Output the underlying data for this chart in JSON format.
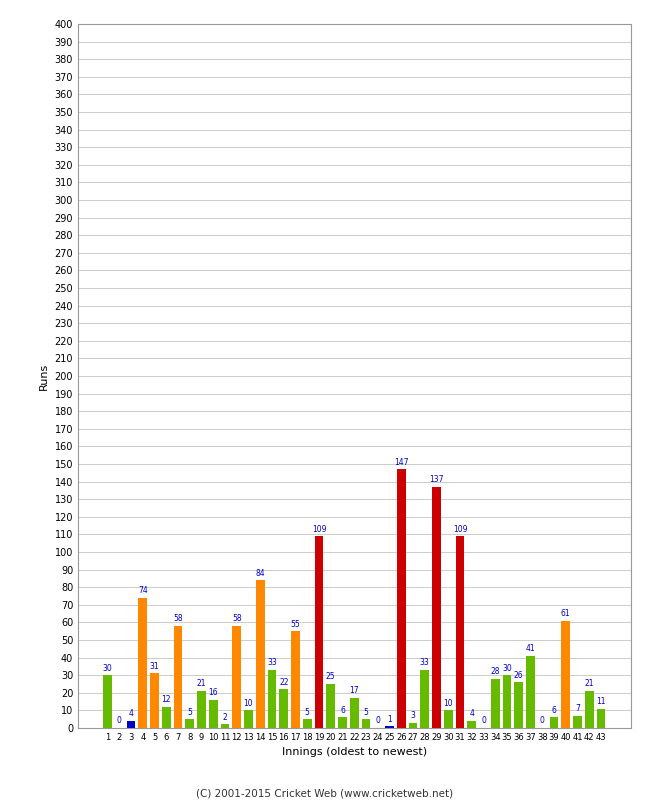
{
  "xlabel": "Innings (oldest to newest)",
  "ylabel": "Runs",
  "footer": "(C) 2001-2015 Cricket Web (www.cricketweb.net)",
  "innings": [
    1,
    2,
    3,
    4,
    5,
    6,
    7,
    8,
    9,
    10,
    11,
    12,
    13,
    14,
    15,
    16,
    17,
    18,
    19,
    20,
    21,
    22,
    23,
    24,
    25,
    26,
    27,
    28,
    29,
    30,
    31,
    32,
    33,
    34,
    35,
    36,
    37,
    38,
    39,
    40,
    41,
    42,
    43
  ],
  "values": [
    30,
    0,
    4,
    74,
    31,
    12,
    58,
    5,
    21,
    16,
    2,
    58,
    10,
    84,
    33,
    22,
    55,
    5,
    109,
    25,
    6,
    17,
    5,
    0,
    1,
    147,
    3,
    33,
    137,
    10,
    109,
    4,
    0,
    28,
    30,
    26,
    41,
    0,
    6,
    61,
    7,
    21,
    11
  ],
  "colors": [
    "#66bb00",
    "#0000cc",
    "#0000cc",
    "#ff8800",
    "#ff8800",
    "#66bb00",
    "#ff8800",
    "#66bb00",
    "#66bb00",
    "#66bb00",
    "#66bb00",
    "#ff8800",
    "#66bb00",
    "#ff8800",
    "#66bb00",
    "#66bb00",
    "#ff8800",
    "#66bb00",
    "#cc0000",
    "#66bb00",
    "#66bb00",
    "#66bb00",
    "#66bb00",
    "#0000cc",
    "#0000cc",
    "#cc0000",
    "#66bb00",
    "#66bb00",
    "#cc0000",
    "#66bb00",
    "#cc0000",
    "#66bb00",
    "#0000cc",
    "#66bb00",
    "#66bb00",
    "#66bb00",
    "#66bb00",
    "#0000cc",
    "#66bb00",
    "#ff8800",
    "#66bb00",
    "#66bb00",
    "#66bb00"
  ],
  "ylim": [
    0,
    400
  ],
  "background_color": "#ffffff",
  "grid_color": "#cccccc",
  "label_color": "#0000cc",
  "label_fontsize": 5.5,
  "ytick_fontsize": 7,
  "xtick_fontsize": 6,
  "xlabel_fontsize": 8,
  "ylabel_fontsize": 8,
  "footer_fontsize": 7.5,
  "bar_width": 0.75,
  "figsize": [
    6.5,
    8.0
  ],
  "dpi": 100
}
